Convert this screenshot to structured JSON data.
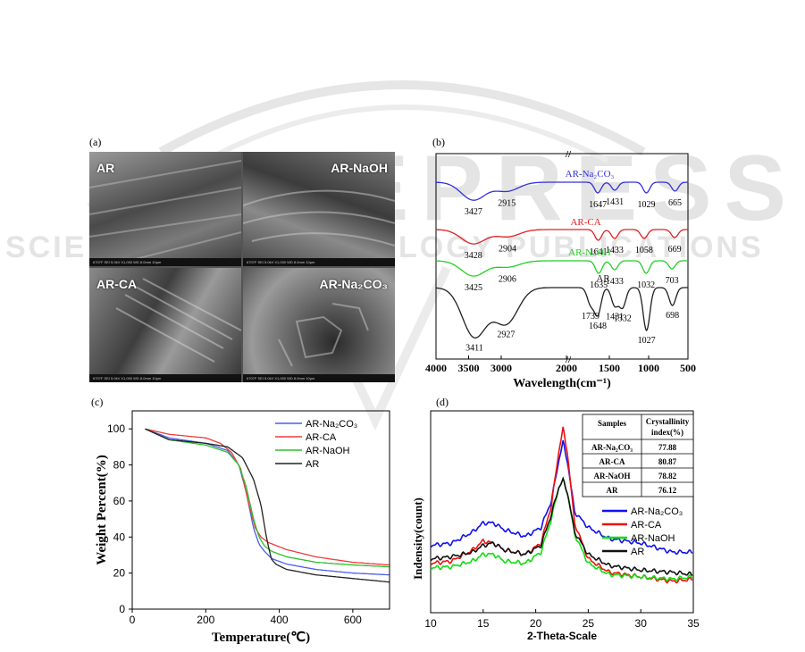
{
  "watermark": {
    "line1": "SCITEPRESS",
    "line2": "SCIENCE AND TECHNOLOGY PUBLICATIONS"
  },
  "panels": {
    "a": {
      "label": "(a)"
    },
    "b": {
      "label": "(b)"
    },
    "c": {
      "label": "(c)"
    },
    "d": {
      "label": "(d)"
    }
  },
  "sem": {
    "tiles": [
      {
        "label": "AR"
      },
      {
        "label": "AR-NaOH"
      },
      {
        "label": "AR-CA"
      },
      {
        "label": "AR-Na₂CO₃"
      }
    ],
    "bar_text": "6707F   SEI   5.0kV   X1,000   WD 8.0mm   10μm"
  },
  "chart_data": [
    {
      "type": "line",
      "panel": "b",
      "xlabel": "Wavelength(cm⁻¹)",
      "x_ticks": [
        "4000",
        "3500",
        "3000",
        "2000",
        "1500",
        "1000",
        "500"
      ],
      "axis_break": "//",
      "series": [
        {
          "name": "AR-Na₂CO₃",
          "color": "#3030e0",
          "peaks": [
            {
              "x": 3427,
              "label": "3427"
            },
            {
              "x": 2915,
              "label": "2915"
            },
            {
              "x": 1647,
              "label": "1647"
            },
            {
              "x": 1431,
              "label": "1431"
            },
            {
              "x": 1029,
              "label": "1029"
            },
            {
              "x": 665,
              "label": "665"
            }
          ]
        },
        {
          "name": "AR-CA",
          "color": "#e02020",
          "peaks": [
            {
              "x": 3428,
              "label": "3428"
            },
            {
              "x": 2904,
              "label": "2904"
            },
            {
              "x": 1641,
              "label": "1641"
            },
            {
              "x": 1433,
              "label": "1433"
            },
            {
              "x": 1058,
              "label": "1058"
            },
            {
              "x": 669,
              "label": "669"
            }
          ]
        },
        {
          "name": "AR-NaOH",
          "color": "#20d020",
          "peaks": [
            {
              "x": 3425,
              "label": "3425"
            },
            {
              "x": 2906,
              "label": "2906"
            },
            {
              "x": 1635,
              "label": "1635"
            },
            {
              "x": 1433,
              "label": "1433"
            },
            {
              "x": 1032,
              "label": "1032"
            },
            {
              "x": 703,
              "label": "703"
            }
          ]
        },
        {
          "name": "AR",
          "color": "#202020",
          "peaks": [
            {
              "x": 3411,
              "label": "3411"
            },
            {
              "x": 2927,
              "label": "2927"
            },
            {
              "x": 1739,
              "label": "1739"
            },
            {
              "x": 1648,
              "label": "1648"
            },
            {
              "x": 1431,
              "label": "1431"
            },
            {
              "x": 1332,
              "label": "1332"
            },
            {
              "x": 1027,
              "label": "1027"
            },
            {
              "x": 698,
              "label": "698"
            }
          ]
        }
      ]
    },
    {
      "type": "line",
      "panel": "c",
      "xlabel": "Temperature(℃)",
      "ylabel": "Weight Percent(%)",
      "xlim": [
        0,
        700
      ],
      "ylim": [
        0,
        110
      ],
      "x_ticks": [
        0,
        200,
        400,
        600
      ],
      "y_ticks": [
        0,
        20,
        40,
        60,
        80,
        100
      ],
      "legend_position": "top-right",
      "series": [
        {
          "name": "AR-Na₂CO₃",
          "color": "#4a5ee8",
          "x": [
            35,
            100,
            200,
            260,
            290,
            310,
            330,
            345,
            360,
            380,
            420,
            500,
            600,
            700
          ],
          "y": [
            100,
            95,
            92,
            88,
            80,
            65,
            45,
            36,
            32,
            28,
            25,
            22,
            20,
            19
          ]
        },
        {
          "name": "AR-CA",
          "color": "#ef3b3b",
          "x": [
            35,
            100,
            200,
            240,
            270,
            295,
            315,
            335,
            350,
            370,
            420,
            500,
            600,
            700
          ],
          "y": [
            100,
            97,
            95,
            92,
            87,
            78,
            60,
            45,
            40,
            37,
            33,
            29,
            26,
            24.5
          ]
        },
        {
          "name": "AR-NaOH",
          "color": "#2bbf2b",
          "x": [
            35,
            100,
            200,
            260,
            290,
            310,
            330,
            345,
            360,
            380,
            420,
            500,
            600,
            700
          ],
          "y": [
            100,
            94,
            91,
            87,
            80,
            68,
            50,
            40,
            35,
            32,
            29,
            26,
            24.5,
            23.5
          ]
        },
        {
          "name": "AR",
          "color": "#222222",
          "x": [
            35,
            100,
            200,
            260,
            300,
            330,
            350,
            365,
            378,
            390,
            420,
            500,
            600,
            700
          ],
          "y": [
            100,
            94,
            92,
            90,
            84,
            72,
            58,
            40,
            28,
            25,
            22,
            19,
            17,
            15
          ]
        }
      ]
    },
    {
      "type": "line",
      "panel": "d",
      "xlabel": "2-Theta-Scale",
      "ylabel": "Indensity(count)",
      "xlim": [
        10,
        35
      ],
      "x_ticks": [
        10,
        15,
        20,
        25,
        30,
        35
      ],
      "legend_position": "right",
      "series": [
        {
          "name": "AR-Na₂CO₃",
          "color": "#1010ee",
          "x": [
            10,
            12,
            14,
            15,
            16,
            17,
            19,
            20.5,
            21.5,
            22.2,
            22.6,
            23.0,
            23.7,
            25,
            27,
            30,
            33,
            35
          ],
          "y": [
            30,
            31,
            36,
            40,
            40,
            37,
            34,
            38,
            50,
            68,
            76,
            68,
            45,
            38,
            33,
            31,
            27,
            27
          ]
        },
        {
          "name": "AR-CA",
          "color": "#ee1010",
          "x": [
            10,
            12,
            14,
            15,
            16,
            17,
            19,
            20.5,
            21.5,
            22.2,
            22.6,
            23.0,
            23.7,
            25,
            27,
            30,
            33,
            35
          ],
          "y": [
            22,
            23,
            28,
            32,
            31,
            28,
            26,
            31,
            48,
            72,
            82,
            72,
            40,
            24,
            18,
            16,
            14,
            15
          ]
        },
        {
          "name": "AR-NaOH",
          "color": "#10dd10",
          "x": [
            10,
            12,
            14,
            15,
            16,
            17,
            19,
            20.5,
            21.5,
            22.2,
            22.6,
            23.0,
            23.7,
            25,
            27,
            30,
            33,
            35
          ],
          "y": [
            20,
            20.5,
            23,
            26,
            26,
            23,
            22,
            27,
            42,
            56,
            59,
            54,
            35,
            22,
            17,
            16,
            15,
            16
          ]
        },
        {
          "name": "AR",
          "color": "#111111",
          "x": [
            10,
            12,
            14,
            15,
            16,
            17,
            19,
            20.5,
            21.5,
            22.2,
            22.6,
            23.0,
            23.7,
            25,
            27,
            30,
            33,
            35
          ],
          "y": [
            24,
            25,
            27,
            30,
            31,
            28,
            26,
            30,
            44,
            56,
            59,
            54,
            36,
            26,
            21,
            19,
            18,
            17
          ]
        }
      ],
      "inset_table": {
        "headers": [
          "Samples",
          "Crystallinity index(%)"
        ],
        "rows": [
          [
            "AR-Na₂CO₃",
            "77.88"
          ],
          [
            "AR-CA",
            "80.87"
          ],
          [
            "AR-NaOH",
            "78.82"
          ],
          [
            "AR",
            "76.12"
          ]
        ]
      }
    }
  ]
}
